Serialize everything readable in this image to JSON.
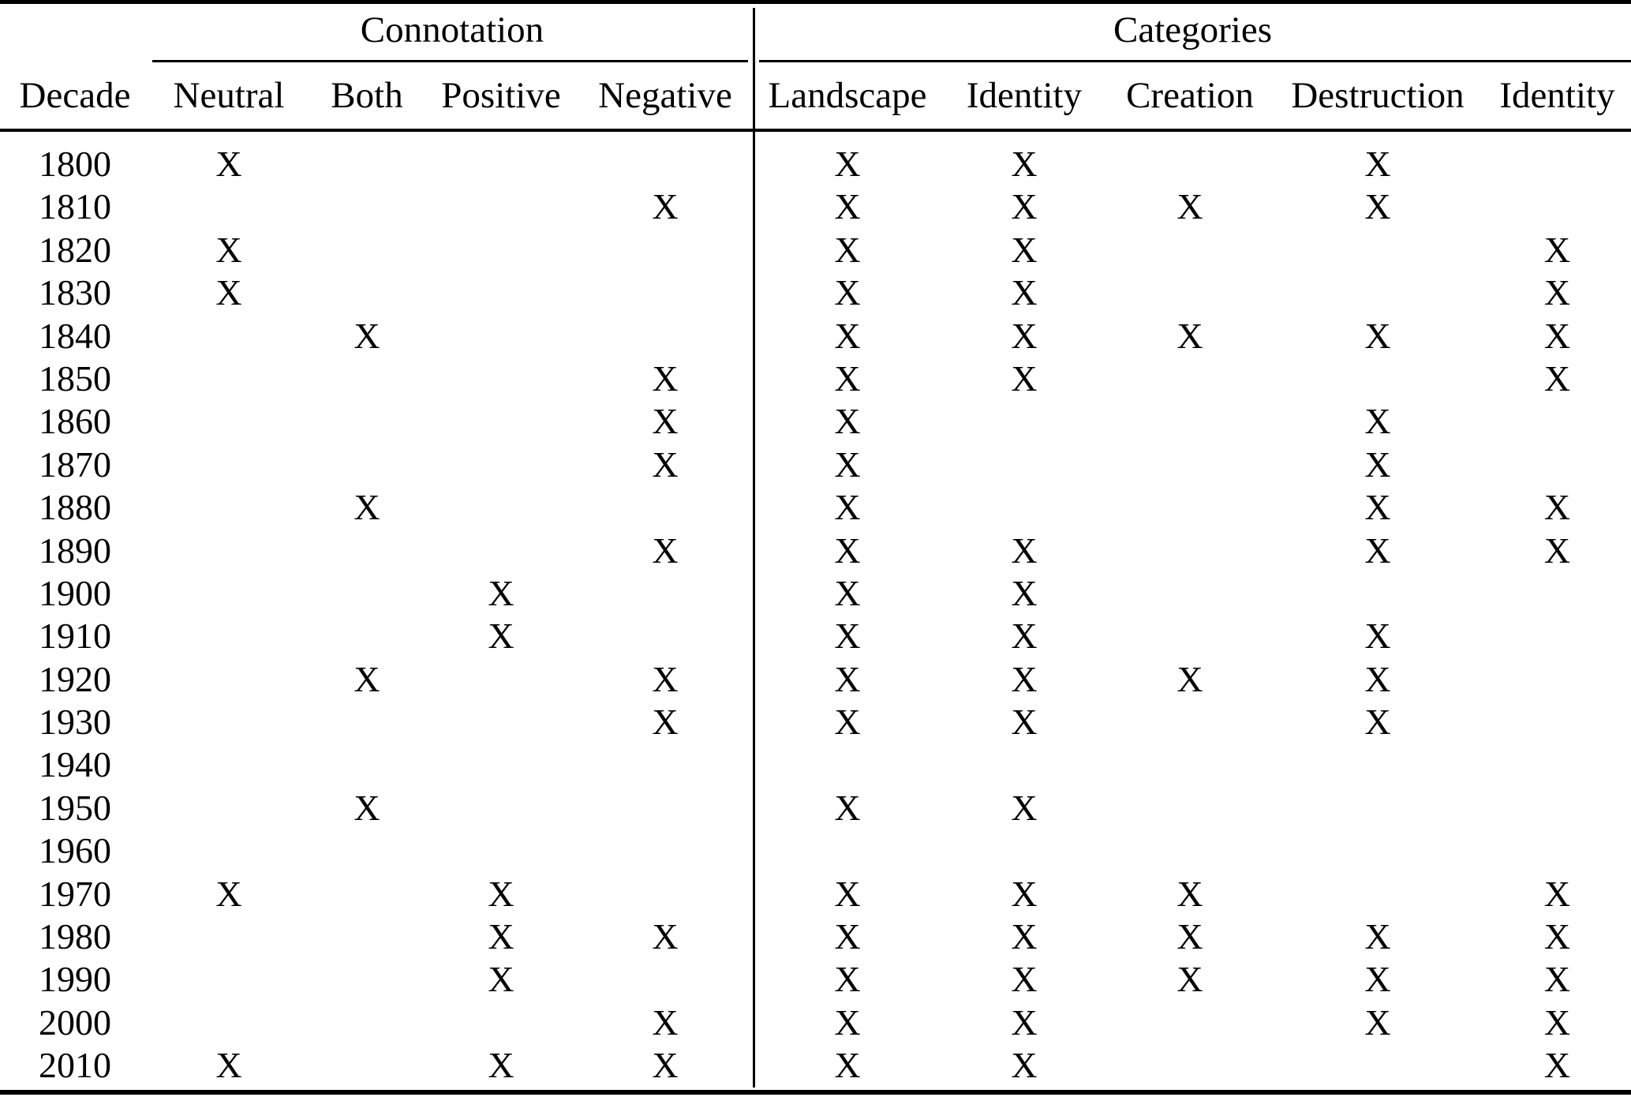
{
  "table": {
    "mark_glyph": "X",
    "group_headers": [
      {
        "label": "Connotation",
        "columns_spanned": 4
      },
      {
        "label": "Categories",
        "columns_spanned": 5
      }
    ],
    "columns": [
      "Decade",
      "Neutral",
      "Both",
      "Positive",
      "Negative",
      "Landscape",
      "Identity",
      "Creation",
      "Destruction",
      "Identity"
    ],
    "rows": [
      {
        "decade": "1800",
        "marks": [
          1,
          0,
          0,
          0,
          1,
          1,
          0,
          1,
          0
        ]
      },
      {
        "decade": "1810",
        "marks": [
          0,
          0,
          0,
          1,
          1,
          1,
          1,
          1,
          0
        ]
      },
      {
        "decade": "1820",
        "marks": [
          1,
          0,
          0,
          0,
          1,
          1,
          0,
          0,
          1
        ]
      },
      {
        "decade": "1830",
        "marks": [
          1,
          0,
          0,
          0,
          1,
          1,
          0,
          0,
          1
        ]
      },
      {
        "decade": "1840",
        "marks": [
          0,
          1,
          0,
          0,
          1,
          1,
          1,
          1,
          1
        ]
      },
      {
        "decade": "1850",
        "marks": [
          0,
          0,
          0,
          1,
          1,
          1,
          0,
          0,
          1
        ]
      },
      {
        "decade": "1860",
        "marks": [
          0,
          0,
          0,
          1,
          1,
          0,
          0,
          1,
          0
        ]
      },
      {
        "decade": "1870",
        "marks": [
          0,
          0,
          0,
          1,
          1,
          0,
          0,
          1,
          0
        ]
      },
      {
        "decade": "1880",
        "marks": [
          0,
          1,
          0,
          0,
          1,
          0,
          0,
          1,
          1
        ]
      },
      {
        "decade": "1890",
        "marks": [
          0,
          0,
          0,
          1,
          1,
          1,
          0,
          1,
          1
        ]
      },
      {
        "decade": "1900",
        "marks": [
          0,
          0,
          1,
          0,
          1,
          1,
          0,
          0,
          0
        ]
      },
      {
        "decade": "1910",
        "marks": [
          0,
          0,
          1,
          0,
          1,
          1,
          0,
          1,
          0
        ]
      },
      {
        "decade": "1920",
        "marks": [
          0,
          1,
          0,
          1,
          1,
          1,
          1,
          1,
          0
        ]
      },
      {
        "decade": "1930",
        "marks": [
          0,
          0,
          0,
          1,
          1,
          1,
          0,
          1,
          0
        ]
      },
      {
        "decade": "1940",
        "marks": [
          0,
          0,
          0,
          0,
          0,
          0,
          0,
          0,
          0
        ]
      },
      {
        "decade": "1950",
        "marks": [
          0,
          1,
          0,
          0,
          1,
          1,
          0,
          0,
          0
        ]
      },
      {
        "decade": "1960",
        "marks": [
          0,
          0,
          0,
          0,
          0,
          0,
          0,
          0,
          0
        ]
      },
      {
        "decade": "1970",
        "marks": [
          1,
          0,
          1,
          0,
          1,
          1,
          1,
          0,
          1
        ]
      },
      {
        "decade": "1980",
        "marks": [
          0,
          0,
          1,
          1,
          1,
          1,
          1,
          1,
          1
        ]
      },
      {
        "decade": "1990",
        "marks": [
          0,
          0,
          1,
          0,
          1,
          1,
          1,
          1,
          1
        ]
      },
      {
        "decade": "2000",
        "marks": [
          0,
          0,
          0,
          1,
          1,
          1,
          0,
          1,
          1
        ]
      },
      {
        "decade": "2010",
        "marks": [
          1,
          0,
          1,
          1,
          1,
          1,
          0,
          0,
          1
        ]
      }
    ]
  }
}
